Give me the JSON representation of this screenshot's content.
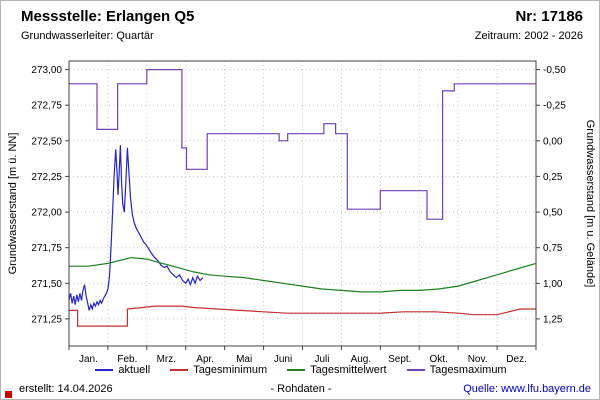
{
  "header": {
    "title": "Messstelle: Erlangen Q5",
    "number": "Nr: 17186",
    "aquifer": "Grundwasserleiter: Quartär",
    "period": "Zeitraum: 2002 - 2026"
  },
  "footer": {
    "created": "erstellt:  14.04.2026",
    "rohdaten": "- Rohdaten -",
    "source": "Quelle: www.lfu.bayern.de",
    "source_color": "#0000c0"
  },
  "chart_data": {
    "type": "line",
    "title": "",
    "xlabel": "",
    "ylabel_left": "Grundwasserstand [m ü. NN]",
    "ylabel_right": "Grundwasserstand [m u. Gelände]",
    "grid": true,
    "legend_position": "bottom",
    "ylim": [
      271.06,
      273.06
    ],
    "y_right_axis_rule": "right_value = 272.50 - left_value",
    "x_tick_labels": [
      "Jan.",
      "Feb.",
      "Mrz.",
      "Apr.",
      "Mai",
      "Juni",
      "Juli",
      "Aug.",
      "Sept.",
      "Okt.",
      "Nov.",
      "Dez."
    ],
    "y_tick_values": [
      271.25,
      271.5,
      271.75,
      272.0,
      272.25,
      272.5,
      272.75,
      273.0
    ],
    "y_left_tick_labels": [
      "271,25",
      "271,50",
      "271,75",
      "272,00",
      "272,25",
      "272,50",
      "272,75",
      "273,00"
    ],
    "y_right_tick_labels": [
      "1,25",
      "1,00",
      "0,75",
      "0,50",
      "0,25",
      "0,00",
      "-0,25",
      "-0,50"
    ],
    "series": [
      {
        "name": "aktuell",
        "color": "#2424c8",
        "points": [
          [
            0.0,
            271.38
          ],
          [
            0.04,
            271.43
          ],
          [
            0.08,
            271.36
          ],
          [
            0.12,
            271.41
          ],
          [
            0.16,
            271.35
          ],
          [
            0.2,
            271.42
          ],
          [
            0.24,
            271.37
          ],
          [
            0.28,
            271.43
          ],
          [
            0.32,
            271.38
          ],
          [
            0.36,
            271.45
          ],
          [
            0.4,
            271.49
          ],
          [
            0.44,
            271.41
          ],
          [
            0.48,
            271.36
          ],
          [
            0.52,
            271.31
          ],
          [
            0.56,
            271.35
          ],
          [
            0.6,
            271.32
          ],
          [
            0.64,
            271.36
          ],
          [
            0.68,
            271.34
          ],
          [
            0.72,
            271.37
          ],
          [
            0.76,
            271.35
          ],
          [
            0.8,
            271.38
          ],
          [
            0.84,
            271.36
          ],
          [
            0.88,
            271.39
          ],
          [
            0.92,
            271.41
          ],
          [
            0.96,
            271.43
          ],
          [
            1.0,
            271.46
          ],
          [
            1.04,
            271.55
          ],
          [
            1.08,
            271.75
          ],
          [
            1.12,
            272.0
          ],
          [
            1.16,
            272.25
          ],
          [
            1.2,
            272.44
          ],
          [
            1.23,
            272.3
          ],
          [
            1.26,
            272.12
          ],
          [
            1.29,
            272.28
          ],
          [
            1.32,
            272.47
          ],
          [
            1.35,
            272.22
          ],
          [
            1.38,
            272.06
          ],
          [
            1.42,
            272.0
          ],
          [
            1.46,
            272.2
          ],
          [
            1.5,
            272.45
          ],
          [
            1.54,
            272.28
          ],
          [
            1.58,
            272.1
          ],
          [
            1.63,
            271.98
          ],
          [
            1.68,
            271.92
          ],
          [
            1.74,
            271.88
          ],
          [
            1.8,
            271.85
          ],
          [
            1.86,
            271.82
          ],
          [
            1.92,
            271.79
          ],
          [
            1.98,
            271.77
          ],
          [
            2.05,
            271.74
          ],
          [
            2.12,
            271.71
          ],
          [
            2.2,
            271.68
          ],
          [
            2.28,
            271.66
          ],
          [
            2.36,
            271.63
          ],
          [
            2.44,
            271.61
          ],
          [
            2.52,
            271.62
          ],
          [
            2.6,
            271.58
          ],
          [
            2.68,
            271.56
          ],
          [
            2.76,
            271.54
          ],
          [
            2.84,
            271.56
          ],
          [
            2.92,
            271.52
          ],
          [
            3.0,
            271.5
          ],
          [
            3.06,
            271.53
          ],
          [
            3.12,
            271.49
          ],
          [
            3.18,
            271.54
          ],
          [
            3.24,
            271.5
          ],
          [
            3.3,
            271.55
          ],
          [
            3.37,
            271.52
          ],
          [
            3.44,
            271.54
          ]
        ]
      },
      {
        "name": "Tagesminimum",
        "color": "#c03030",
        "points": [
          [
            0.0,
            271.31
          ],
          [
            0.22,
            271.31
          ],
          [
            0.22,
            271.2
          ],
          [
            1.5,
            271.2
          ],
          [
            1.5,
            271.32
          ],
          [
            1.9,
            271.33
          ],
          [
            2.2,
            271.34
          ],
          [
            2.9,
            271.34
          ],
          [
            3.2,
            271.33
          ],
          [
            3.8,
            271.32
          ],
          [
            4.4,
            271.31
          ],
          [
            5.0,
            271.3
          ],
          [
            5.6,
            271.29
          ],
          [
            6.4,
            271.29
          ],
          [
            7.2,
            271.29
          ],
          [
            8.0,
            271.29
          ],
          [
            8.6,
            271.3
          ],
          [
            9.4,
            271.3
          ],
          [
            10.0,
            271.29
          ],
          [
            10.4,
            271.28
          ],
          [
            11.0,
            271.28
          ],
          [
            11.3,
            271.3
          ],
          [
            11.6,
            271.32
          ],
          [
            12.0,
            271.32
          ]
        ]
      },
      {
        "name": "Tagesmittelwert",
        "color": "#1e8020",
        "points": [
          [
            0.0,
            271.62
          ],
          [
            0.5,
            271.62
          ],
          [
            1.0,
            271.64
          ],
          [
            1.3,
            271.66
          ],
          [
            1.6,
            271.68
          ],
          [
            2.0,
            271.67
          ],
          [
            2.4,
            271.64
          ],
          [
            2.8,
            271.61
          ],
          [
            3.2,
            271.58
          ],
          [
            3.6,
            271.56
          ],
          [
            4.0,
            271.55
          ],
          [
            4.5,
            271.54
          ],
          [
            5.0,
            271.52
          ],
          [
            5.5,
            271.5
          ],
          [
            6.0,
            271.48
          ],
          [
            6.5,
            271.46
          ],
          [
            7.0,
            271.45
          ],
          [
            7.5,
            271.44
          ],
          [
            8.0,
            271.44
          ],
          [
            8.5,
            271.45
          ],
          [
            9.0,
            271.45
          ],
          [
            9.5,
            271.46
          ],
          [
            10.0,
            271.48
          ],
          [
            10.5,
            271.52
          ],
          [
            11.0,
            271.56
          ],
          [
            11.5,
            271.6
          ],
          [
            12.0,
            271.64
          ]
        ]
      },
      {
        "name": "Tagesmaximum",
        "color": "#7040b0",
        "points": [
          [
            0.0,
            272.9
          ],
          [
            0.72,
            272.9
          ],
          [
            0.72,
            272.58
          ],
          [
            1.25,
            272.58
          ],
          [
            1.25,
            272.9
          ],
          [
            2.0,
            272.9
          ],
          [
            2.0,
            273.0
          ],
          [
            2.9,
            273.0
          ],
          [
            2.9,
            272.45
          ],
          [
            3.02,
            272.45
          ],
          [
            3.02,
            272.3
          ],
          [
            3.55,
            272.3
          ],
          [
            3.55,
            272.55
          ],
          [
            5.4,
            272.55
          ],
          [
            5.4,
            272.5
          ],
          [
            5.62,
            272.5
          ],
          [
            5.62,
            272.55
          ],
          [
            6.55,
            272.55
          ],
          [
            6.55,
            272.62
          ],
          [
            6.85,
            272.62
          ],
          [
            6.85,
            272.55
          ],
          [
            7.15,
            272.55
          ],
          [
            7.15,
            272.02
          ],
          [
            8.0,
            272.02
          ],
          [
            8.0,
            272.15
          ],
          [
            9.2,
            272.15
          ],
          [
            9.2,
            271.95
          ],
          [
            9.6,
            271.95
          ],
          [
            9.6,
            272.85
          ],
          [
            9.9,
            272.85
          ],
          [
            9.9,
            272.9
          ],
          [
            12.0,
            272.9
          ]
        ]
      }
    ]
  }
}
